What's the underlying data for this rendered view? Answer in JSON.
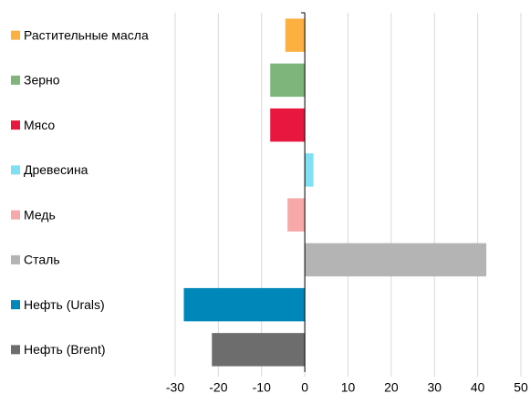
{
  "chart_data": {
    "type": "bar",
    "orientation": "horizontal",
    "categories": [
      "Растительные масла",
      "Зерно",
      "Мясо",
      "Древесина",
      "Медь",
      "Сталь",
      "Нефть (Urals)",
      "Нефть (Brent)"
    ],
    "values": [
      -4.5,
      -8,
      -8,
      2,
      -4,
      42,
      -28,
      -21.5
    ],
    "colors": [
      "#fbb040",
      "#7db57a",
      "#e8173f",
      "#7fe0f5",
      "#f7a8a8",
      "#b4b4b4",
      "#0087b9",
      "#6d6d6d"
    ],
    "xlim": [
      -30,
      50
    ],
    "xticks": [
      -30,
      -20,
      -10,
      0,
      10,
      20,
      30,
      40,
      50
    ],
    "grid": true
  }
}
